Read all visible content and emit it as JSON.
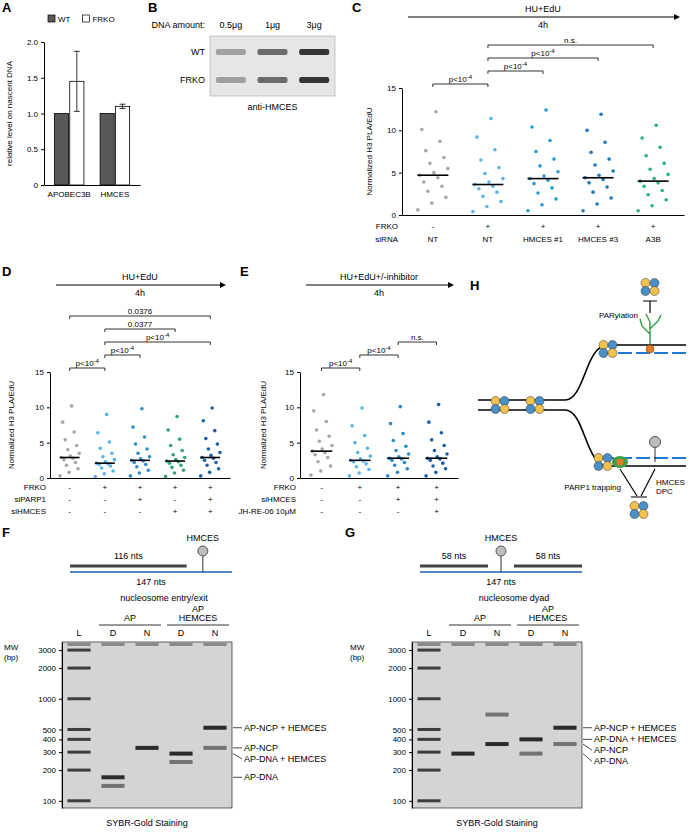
{
  "chart_data": [
    {
      "label": "A",
      "type": "bar",
      "y_label": "relative level on nascent DNA",
      "categories": [
        "APOBEC3B",
        "HMCES"
      ],
      "series": [
        {
          "name": "WT",
          "color": "#595959",
          "values": [
            1,
            1
          ]
        },
        {
          "name": "FRKO",
          "color": "#ffffff",
          "values": [
            1.45,
            1.1
          ],
          "errors": [
            0.42,
            0.03
          ]
        }
      ],
      "ylim": [
        0,
        2
      ],
      "yticks": [
        0,
        0.5,
        {
          "value": 1,
          "label": "1.0"
        },
        1.5,
        {
          "value": 2,
          "label": "2.0"
        }
      ],
      "legend": "top"
    },
    {
      "label": "C",
      "type": "dot",
      "header": {
        "treatment": "HU+EdU",
        "time": "4h"
      },
      "y_label": "Normalized H3 PLA/EdU",
      "ylim": [
        0,
        15
      ],
      "yticks": [
        0,
        5,
        10,
        15
      ],
      "conditions": [
        {
          "name": "FRKO",
          "values": [
            "-",
            "+",
            "+",
            "+",
            "+"
          ]
        },
        {
          "name": "siRNA",
          "values": [
            "NT",
            "NT",
            "HMCES #1",
            "HMCES #3",
            "A3B"
          ]
        }
      ],
      "series": [
        {
          "color": "#a6a6a6",
          "median": 4.7,
          "values": [
            0.6,
            1.4,
            2.1,
            2.8,
            3.4,
            3.9,
            4.4,
            4.7,
            5.0,
            5.5,
            6.1,
            6.8,
            7.6,
            8.7,
            10.1,
            12.2
          ]
        },
        {
          "color": "#56b4e9",
          "median": 3.6,
          "values": [
            0.4,
            1.0,
            1.6,
            2.2,
            2.7,
            3.1,
            3.4,
            3.6,
            3.9,
            4.3,
            4.9,
            5.6,
            6.5,
            7.7,
            9.2,
            11.4
          ]
        },
        {
          "color": "#2c9ad6",
          "median": 4.3,
          "values": [
            0.5,
            1.2,
            1.9,
            2.6,
            3.2,
            3.7,
            4.1,
            4.3,
            4.6,
            5.1,
            5.8,
            6.6,
            7.5,
            8.8,
            10.4,
            12.4
          ]
        },
        {
          "color": "#1f78b4",
          "median": 4.4,
          "values": [
            0.5,
            1.3,
            2.0,
            2.7,
            3.3,
            3.8,
            4.2,
            4.4,
            4.7,
            5.2,
            5.9,
            6.6,
            7.4,
            8.6,
            10.0,
            11.9
          ]
        },
        {
          "color": "#27ae8a",
          "median": 4.0,
          "values": [
            0.5,
            1.1,
            1.8,
            2.4,
            2.9,
            3.4,
            3.8,
            4.0,
            4.3,
            4.8,
            5.4,
            6.1,
            7.0,
            8.0,
            9.1,
            10.6
          ]
        }
      ],
      "comparisons": [
        {
          "groups": [
            0,
            1
          ],
          "label": {
            "text": "p<10",
            "sup": "-4"
          }
        },
        {
          "groups": [
            1,
            2
          ],
          "label": {
            "text": "p<10",
            "sup": "-4"
          }
        },
        {
          "groups": [
            1,
            3
          ],
          "label": {
            "text": "p<10",
            "sup": "-4"
          }
        },
        {
          "groups": [
            1,
            4
          ],
          "label": {
            "text": "n.s."
          }
        }
      ]
    },
    {
      "label": "D",
      "type": "dot",
      "header": {
        "treatment": "HU+EdU",
        "time": "4h"
      },
      "y_label": "Normalized H3 PLA/EdU",
      "ylim": [
        0,
        15
      ],
      "yticks": [
        0,
        5,
        10,
        15
      ],
      "conditions": [
        {
          "name": "FRKO",
          "values": [
            "-",
            "+",
            "+",
            "+",
            "+"
          ]
        },
        {
          "name": "siPARP1",
          "values": [
            "-",
            "-",
            "+",
            "-",
            "+"
          ]
        },
        {
          "name": "siHMCES",
          "values": [
            "-",
            "-",
            "-",
            "+",
            "+"
          ]
        }
      ],
      "series": [
        {
          "color": "#a6a6a6",
          "median": 2.9,
          "values": [
            0.3,
            0.8,
            1.3,
            1.8,
            2.2,
            2.6,
            2.8,
            2.9,
            3.1,
            3.5,
            4.0,
            4.6,
            5.4,
            6.5,
            7.9,
            10.2
          ]
        },
        {
          "color": "#56b4e9",
          "median": 2.1,
          "values": [
            0.2,
            0.6,
            1.0,
            1.4,
            1.7,
            1.9,
            2.0,
            2.1,
            2.3,
            2.6,
            3.0,
            3.5,
            4.2,
            5.1,
            6.4,
            9.0
          ]
        },
        {
          "color": "#2a8cc8",
          "median": 2.5,
          "values": [
            0.3,
            0.7,
            1.1,
            1.6,
            1.9,
            2.2,
            2.4,
            2.5,
            2.7,
            3.0,
            3.5,
            4.1,
            4.8,
            5.8,
            7.2,
            9.8
          ]
        },
        {
          "color": "#2fa37a",
          "median": 2.4,
          "values": [
            0.2,
            0.7,
            1.1,
            1.5,
            1.8,
            2.1,
            2.3,
            2.4,
            2.6,
            2.9,
            3.3,
            3.9,
            4.6,
            5.5,
            6.8,
            8.7
          ]
        },
        {
          "color": "#1f5fa8",
          "median": 2.9,
          "values": [
            0.3,
            0.8,
            1.3,
            1.8,
            2.2,
            2.5,
            2.8,
            2.9,
            3.2,
            3.6,
            4.1,
            4.8,
            5.6,
            6.7,
            8.1,
            9.9
          ]
        }
      ],
      "comparisons": [
        {
          "groups": [
            0,
            1
          ],
          "label": {
            "text": "p<10",
            "sup": "-4"
          }
        },
        {
          "groups": [
            1,
            2
          ],
          "label": {
            "text": "p<10",
            "sup": "-4"
          }
        },
        {
          "groups": [
            1,
            4
          ],
          "label": {
            "text": "p<10",
            "sup": "-4"
          }
        },
        {
          "groups": [
            1,
            3
          ],
          "label": {
            "text": "0.0377"
          }
        },
        {
          "groups": [
            0,
            4
          ],
          "label": {
            "text": "0.0376"
          }
        }
      ]
    },
    {
      "label": "E",
      "type": "dot",
      "header": {
        "treatment": "HU+EdU+/-inhibitor",
        "time": "4h"
      },
      "y_label": "Normalized H3 PLA/EdU",
      "ylim": [
        0,
        15
      ],
      "yticks": [
        0,
        5,
        10,
        15
      ],
      "conditions": [
        {
          "name": "FRKO",
          "values": [
            "-",
            "+",
            "+",
            "+"
          ]
        },
        {
          "name": "siHMCES",
          "values": [
            "-",
            "-",
            "+",
            "+"
          ]
        },
        {
          "name": "JH-RE-06 10μM",
          "values": [
            "-",
            "-",
            "-",
            "+"
          ]
        }
      ],
      "series": [
        {
          "color": "#a6a6a6",
          "median": 3.8,
          "values": [
            0.4,
            1.0,
            1.7,
            2.3,
            2.9,
            3.3,
            3.6,
            3.8,
            4.1,
            4.6,
            5.2,
            5.9,
            6.8,
            8.0,
            9.5,
            11.8
          ]
        },
        {
          "color": "#56b4e9",
          "median": 2.5,
          "values": [
            0.3,
            0.7,
            1.2,
            1.6,
            2.0,
            2.3,
            2.4,
            2.5,
            2.7,
            3.1,
            3.6,
            4.2,
            5.0,
            6.0,
            7.4,
            9.9
          ]
        },
        {
          "color": "#2b88c8",
          "median": 2.8,
          "values": [
            0.3,
            0.8,
            1.3,
            1.8,
            2.2,
            2.5,
            2.7,
            2.8,
            3.0,
            3.4,
            3.9,
            4.5,
            5.3,
            6.3,
            7.7,
            10.1
          ]
        },
        {
          "color": "#1a5da6",
          "median": 2.8,
          "values": [
            0.3,
            0.8,
            1.3,
            1.7,
            2.1,
            2.5,
            2.7,
            2.8,
            3.0,
            3.4,
            3.9,
            4.6,
            5.4,
            6.4,
            7.9,
            10.4
          ]
        }
      ],
      "comparisons": [
        {
          "groups": [
            0,
            1
          ],
          "label": {
            "text": "p<10",
            "sup": "-4"
          }
        },
        {
          "groups": [
            1,
            2
          ],
          "label": {
            "text": "p<10",
            "sup": "-4"
          }
        },
        {
          "groups": [
            2,
            3
          ],
          "label": {
            "text": "n.s."
          }
        }
      ]
    },
    {
      "label": "F",
      "type": "gel",
      "log": "y",
      "construct": {
        "protein": "HMCES",
        "segments": [
          "116 nts"
        ],
        "length": "147 nts"
      },
      "title": "nucleosome entry/exit",
      "y_label": "MW (bp)",
      "ylim": [
        85,
        3600
      ],
      "yticks": [
        100,
        200,
        300,
        400,
        500,
        1000,
        2000,
        3000
      ],
      "ladder": {
        "name": "L",
        "bands": [
          100,
          200,
          300,
          400,
          500,
          1000,
          2000,
          3000
        ]
      },
      "groups": [
        {
          "label": "AP",
          "lanes": [
            {
              "name": "D",
              "bands": [
                170,
                140
              ]
            },
            {
              "name": "N",
              "bands": [
                330
              ]
            }
          ]
        },
        {
          "label": "AP HEMCES",
          "lanes": [
            {
              "name": "D",
              "bands": [
                290,
                240
              ]
            },
            {
              "name": "N",
              "bands": [
                520,
                330
              ]
            }
          ]
        }
      ],
      "annotations": [
        {
          "text": "AP-NCP + HEMCES",
          "value": 520
        },
        {
          "text": "AP-NCP",
          "value": 330
        },
        {
          "text": "AP-DNA + HEMCES",
          "value": 290
        },
        {
          "text": "AP-DNA",
          "value": 170
        }
      ],
      "caption": "SYBR-Gold Staining"
    },
    {
      "label": "G",
      "type": "gel",
      "log": "y",
      "construct": {
        "protein": "HMCES",
        "segments": [
          "58 nts",
          "58 nts"
        ],
        "length": "147 nts"
      },
      "title": "nucleosome dyad",
      "y_label": "MW (bp)",
      "ylim": [
        85,
        3600
      ],
      "yticks": [
        100,
        200,
        300,
        400,
        500,
        1000,
        2000,
        3000
      ],
      "ladder": {
        "name": "L",
        "bands": [
          100,
          200,
          300,
          400,
          500,
          1000,
          2000,
          3000
        ]
      },
      "groups": [
        {
          "label": "AP",
          "lanes": [
            {
              "name": "D",
              "bands": [
                290
              ]
            },
            {
              "name": "N",
              "bands": [
                360,
                700
              ]
            }
          ]
        },
        {
          "label": "AP HEMCES",
          "lanes": [
            {
              "name": "D",
              "bands": [
                400,
                290
              ]
            },
            {
              "name": "N",
              "bands": [
                520,
                360
              ]
            }
          ]
        }
      ],
      "annotations": [
        {
          "text": "AP-NCP + HEMCES",
          "value": 520
        },
        {
          "text": "AP-DNA + HEMCES",
          "value": 400
        },
        {
          "text": "AP-NCP",
          "value": 360
        },
        {
          "text": "AP-DNA",
          "value": 290
        }
      ],
      "caption": "SYBR-Gold Staining"
    }
  ],
  "blot": {
    "label": "B",
    "header": "DNA amount:",
    "lanes": [
      "0.5μg",
      "1μg",
      "3μg"
    ],
    "rows": [
      "WT",
      "FRKO"
    ],
    "caption": "anti-HMCES"
  },
  "schematic": {
    "label": "H",
    "labels": {
      "top": "PARylation",
      "left": "PARP1 trapping",
      "right": "HMCES DPC"
    }
  }
}
